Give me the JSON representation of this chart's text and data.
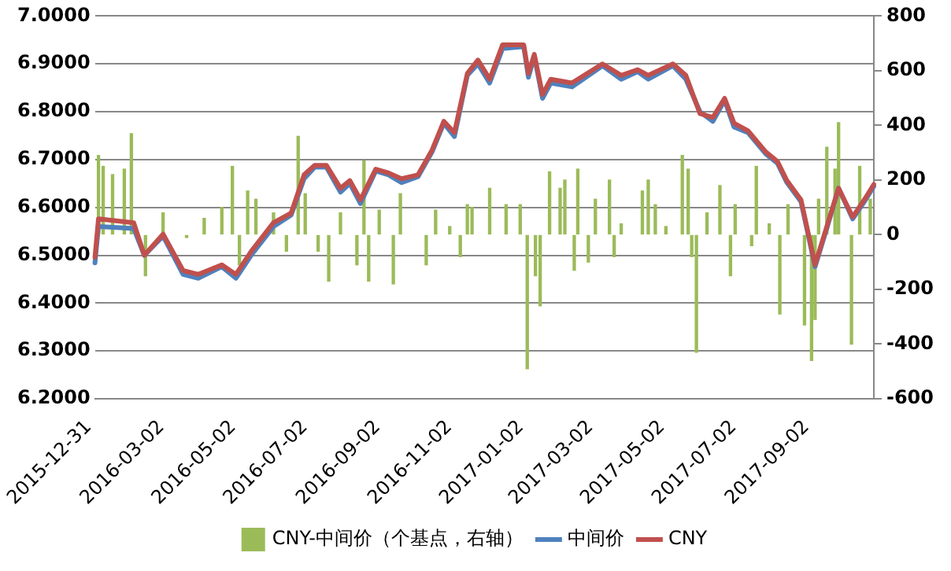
{
  "chart_data": {
    "type": "line",
    "grid": "y",
    "legend": "bottom",
    "marker": "none",
    "xlim": [
      "2015-12-31",
      "2017-10-24"
    ],
    "xticks": [
      "2015-12-31",
      "2016-03-02",
      "2016-05-02",
      "2016-07-02",
      "2016-09-02",
      "2016-11-02",
      "2017-01-02",
      "2017-03-02",
      "2017-05-02",
      "2017-07-02",
      "2017-09-02"
    ],
    "ylim": [
      6.2,
      7.0
    ],
    "yticks": [
      {
        "value": 6.2,
        "label": "6.2000"
      },
      {
        "value": 6.3,
        "label": "6.3000"
      },
      {
        "value": 6.4,
        "label": "6.4000"
      },
      {
        "value": 6.5,
        "label": "6.5000"
      },
      {
        "value": 6.6,
        "label": "6.6000"
      },
      {
        "value": 6.7,
        "label": "6.7000"
      },
      {
        "value": 6.8,
        "label": "6.8000"
      },
      {
        "value": 6.9,
        "label": "6.9000"
      },
      {
        "value": 7.0,
        "label": "7.0000"
      }
    ],
    "y2lim": [
      -600,
      800
    ],
    "y2ticks": [
      -600,
      -400,
      -200,
      0,
      200,
      400,
      600,
      800
    ],
    "series": [
      {
        "name": "CNY-中间价（个基点，右轴）",
        "type": "bar",
        "axis": "y2",
        "color": "#9bbb59",
        "x": [
          "2016-01-03",
          "2016-01-07",
          "2016-01-15",
          "2016-01-25",
          "2016-01-31",
          "2016-02-12",
          "2016-02-27",
          "2016-03-18",
          "2016-04-02",
          "2016-04-17",
          "2016-04-26",
          "2016-05-02",
          "2016-05-09",
          "2016-05-16",
          "2016-05-31",
          "2016-06-11",
          "2016-06-21",
          "2016-06-27",
          "2016-07-08",
          "2016-07-17",
          "2016-07-27",
          "2016-08-10",
          "2016-08-16",
          "2016-08-20",
          "2016-08-29",
          "2016-09-10",
          "2016-09-16",
          "2016-10-08",
          "2016-10-16",
          "2016-10-28",
          "2016-11-06",
          "2016-11-12",
          "2016-11-16",
          "2016-12-01",
          "2016-12-15",
          "2016-12-27",
          "2017-01-02",
          "2017-01-09",
          "2017-01-13",
          "2017-01-21",
          "2017-01-30",
          "2017-02-03",
          "2017-02-11",
          "2017-02-14",
          "2017-02-23",
          "2017-03-01",
          "2017-03-13",
          "2017-03-17",
          "2017-03-23",
          "2017-04-10",
          "2017-04-15",
          "2017-04-21",
          "2017-04-30",
          "2017-05-14",
          "2017-05-19",
          "2017-05-22",
          "2017-05-26",
          "2017-06-04",
          "2017-06-15",
          "2017-06-24",
          "2017-06-28",
          "2017-07-12",
          "2017-07-16",
          "2017-07-27",
          "2017-08-05",
          "2017-08-12",
          "2017-08-26",
          "2017-09-01",
          "2017-09-04",
          "2017-09-07",
          "2017-09-14",
          "2017-09-21",
          "2017-09-24",
          "2017-10-05",
          "2017-10-12",
          "2017-10-21"
        ],
        "values": [
          290,
          250,
          220,
          240,
          370,
          -150,
          80,
          -10,
          60,
          100,
          250,
          -110,
          160,
          130,
          80,
          -60,
          360,
          150,
          -60,
          -170,
          80,
          -110,
          270,
          -170,
          90,
          -180,
          150,
          -110,
          90,
          30,
          -80,
          110,
          100,
          170,
          110,
          110,
          -490,
          -150,
          -260,
          230,
          170,
          200,
          -130,
          240,
          -100,
          130,
          200,
          -80,
          40,
          160,
          200,
          110,
          30,
          290,
          240,
          -80,
          -430,
          80,
          180,
          -150,
          110,
          -40,
          250,
          40,
          -290,
          110,
          -330,
          -460,
          -310,
          130,
          320,
          240,
          410,
          -400,
          250,
          130
        ]
      },
      {
        "name": "中间价",
        "color": "#4f81bd",
        "x": [
          "2015-12-31",
          "2016-01-03",
          "2016-02-02",
          "2016-02-11",
          "2016-02-27",
          "2016-03-15",
          "2016-03-28",
          "2016-04-17",
          "2016-04-29",
          "2016-05-12",
          "2016-05-31",
          "2016-06-15",
          "2016-06-26",
          "2016-07-05",
          "2016-07-15",
          "2016-07-27",
          "2016-08-04",
          "2016-08-13",
          "2016-08-26",
          "2016-09-06",
          "2016-09-17",
          "2016-10-01",
          "2016-10-13",
          "2016-10-23",
          "2016-11-01",
          "2016-11-12",
          "2016-11-21",
          "2016-12-01",
          "2016-12-12",
          "2016-12-30",
          "2017-01-03",
          "2017-01-08",
          "2017-01-15",
          "2017-01-22",
          "2017-02-09",
          "2017-03-07",
          "2017-03-23",
          "2017-04-06",
          "2017-04-15",
          "2017-05-06",
          "2017-05-17",
          "2017-05-29",
          "2017-06-09",
          "2017-06-19",
          "2017-06-27",
          "2017-07-09",
          "2017-07-24",
          "2017-08-03",
          "2017-08-11",
          "2017-08-23",
          "2017-09-04",
          "2017-09-14",
          "2017-09-24",
          "2017-10-06",
          "2017-10-17",
          "2017-10-24"
        ],
        "values": [
          6.484,
          6.56,
          6.556,
          6.5,
          6.54,
          6.46,
          6.452,
          6.476,
          6.452,
          6.5,
          6.56,
          6.584,
          6.66,
          6.684,
          6.684,
          6.632,
          6.65,
          6.608,
          6.676,
          6.668,
          6.652,
          6.664,
          6.716,
          6.776,
          6.748,
          6.876,
          6.9,
          6.86,
          6.932,
          6.936,
          6.872,
          6.916,
          6.828,
          6.86,
          6.852,
          6.896,
          6.868,
          6.884,
          6.868,
          6.896,
          6.868,
          6.8,
          6.78,
          6.824,
          6.768,
          6.756,
          6.712,
          6.692,
          6.652,
          6.612,
          6.476,
          6.556,
          6.64,
          6.576,
          6.616,
          6.644
        ]
      },
      {
        "name": "CNY",
        "color": "#c0504d",
        "x": [
          "2015-12-31",
          "2016-01-03",
          "2016-02-02",
          "2016-02-11",
          "2016-02-27",
          "2016-03-15",
          "2016-03-28",
          "2016-04-17",
          "2016-04-29",
          "2016-05-12",
          "2016-05-31",
          "2016-06-15",
          "2016-06-26",
          "2016-07-05",
          "2016-07-15",
          "2016-07-27",
          "2016-08-04",
          "2016-08-13",
          "2016-08-26",
          "2016-09-06",
          "2016-09-17",
          "2016-10-01",
          "2016-10-13",
          "2016-10-23",
          "2016-11-01",
          "2016-11-12",
          "2016-11-21",
          "2016-12-01",
          "2016-12-12",
          "2016-12-30",
          "2017-01-03",
          "2017-01-08",
          "2017-01-15",
          "2017-01-22",
          "2017-02-09",
          "2017-03-07",
          "2017-03-23",
          "2017-04-06",
          "2017-04-15",
          "2017-05-06",
          "2017-05-17",
          "2017-05-29",
          "2017-06-09",
          "2017-06-19",
          "2017-06-27",
          "2017-07-09",
          "2017-07-24",
          "2017-08-03",
          "2017-08-11",
          "2017-08-23",
          "2017-09-04",
          "2017-09-14",
          "2017-09-24",
          "2017-10-06",
          "2017-10-17",
          "2017-10-24"
        ],
        "values": [
          6.496,
          6.576,
          6.568,
          6.5,
          6.544,
          6.468,
          6.46,
          6.48,
          6.46,
          6.508,
          6.568,
          6.588,
          6.668,
          6.688,
          6.688,
          6.64,
          6.656,
          6.616,
          6.68,
          6.672,
          6.66,
          6.668,
          6.72,
          6.78,
          6.756,
          6.88,
          6.908,
          6.868,
          6.94,
          6.94,
          6.88,
          6.92,
          6.836,
          6.868,
          6.86,
          6.9,
          6.876,
          6.888,
          6.876,
          6.9,
          6.876,
          6.796,
          6.788,
          6.828,
          6.776,
          6.76,
          6.716,
          6.696,
          6.656,
          6.616,
          6.48,
          6.56,
          6.64,
          6.58,
          6.62,
          6.648
        ]
      }
    ]
  }
}
